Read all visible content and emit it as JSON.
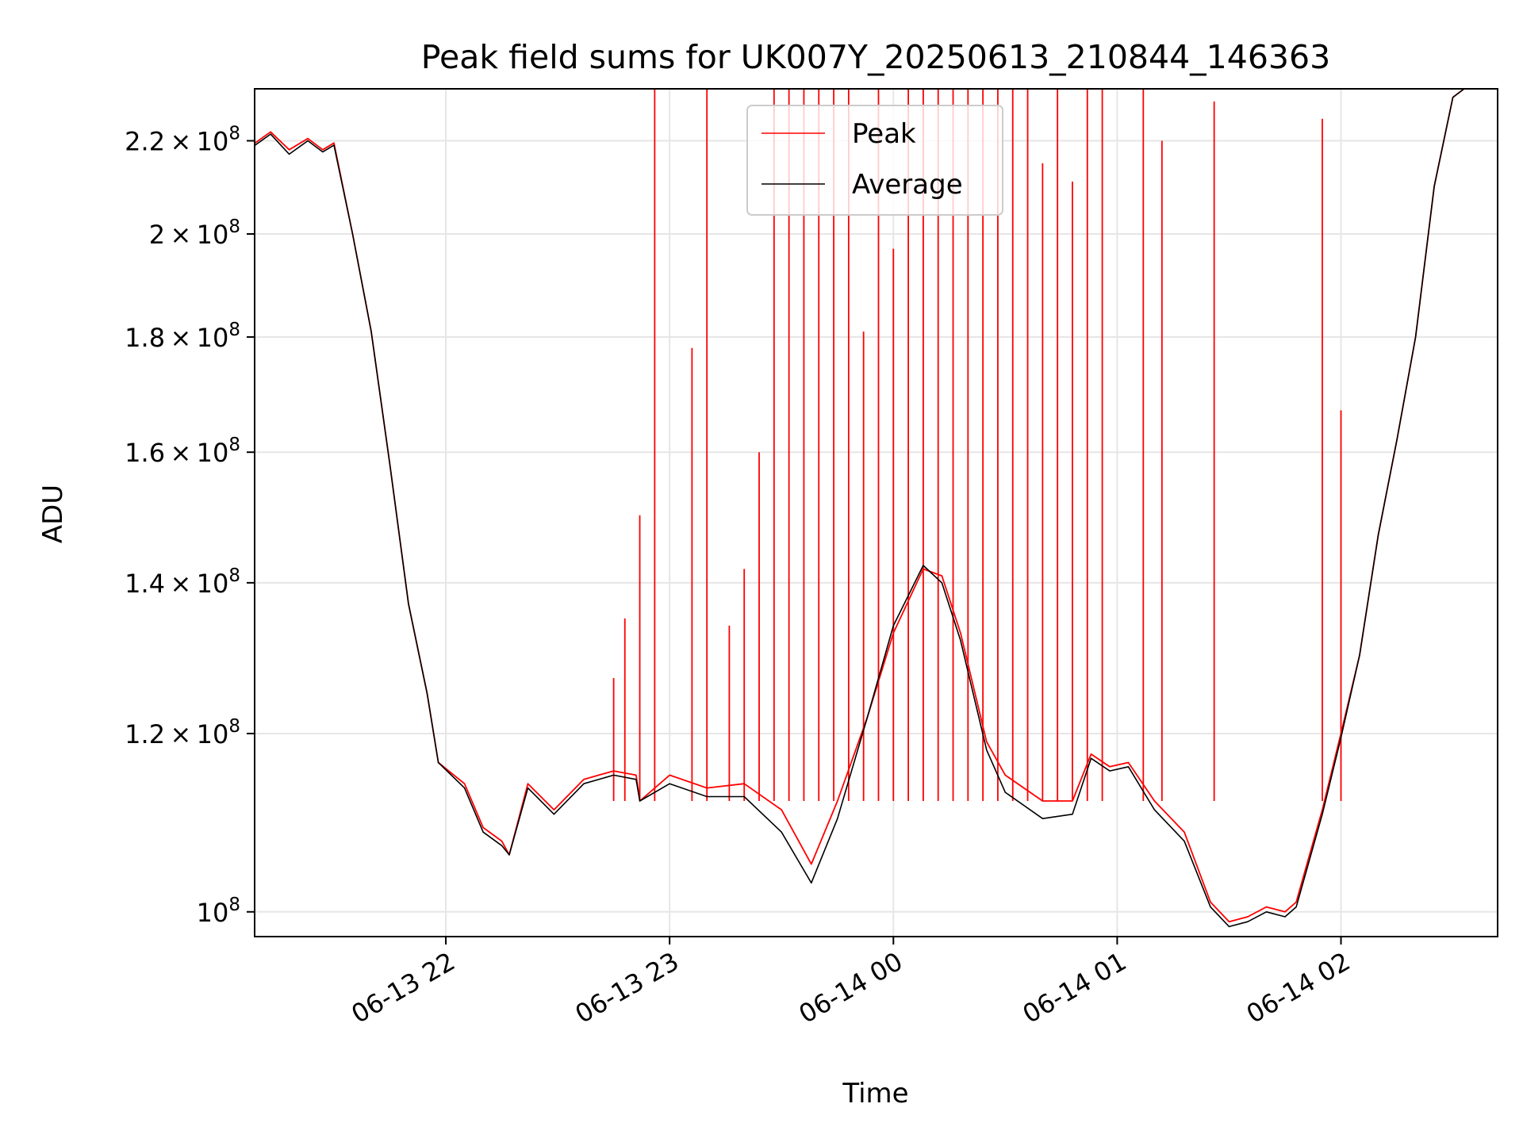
{
  "chart_data": {
    "type": "line",
    "title": "Peak field sums for UK007Y_20250613_210844_146363",
    "xlabel": "Time",
    "ylabel": "ADU",
    "yscale": "log",
    "ylim": [
      97500000,
      232000000
    ],
    "xlim": [
      "2025-06-13 21:08:44",
      "2025-06-14 02:42:00"
    ],
    "grid": true,
    "legend_position": "upper center",
    "x_ticks": [
      {
        "value": "2025-06-13 22:00",
        "label": "06-13 22"
      },
      {
        "value": "2025-06-13 23:00",
        "label": "06-13 23"
      },
      {
        "value": "2025-06-14 00:00",
        "label": "06-14 00"
      },
      {
        "value": "2025-06-14 01:00",
        "label": "06-14 01"
      },
      {
        "value": "2025-06-14 02:00",
        "label": "06-14 02"
      }
    ],
    "y_ticks": [
      {
        "value": 100000000,
        "mantissa": "",
        "exp": "8"
      },
      {
        "value": 120000000,
        "mantissa": "1.2",
        "exp": "8"
      },
      {
        "value": 140000000,
        "mantissa": "1.4",
        "exp": "8"
      },
      {
        "value": 160000000,
        "mantissa": "1.6",
        "exp": "8"
      },
      {
        "value": 180000000,
        "mantissa": "1.8",
        "exp": "8"
      },
      {
        "value": 200000000,
        "mantissa": "2",
        "exp": "8"
      },
      {
        "value": 220000000,
        "mantissa": "2.2",
        "exp": "8"
      }
    ],
    "series": [
      {
        "name": "Peak",
        "color": "#ff0000",
        "points": [
          [
            "2025-06-13 21:08",
            219000000
          ],
          [
            "2025-06-13 21:13",
            222000000
          ],
          [
            "2025-06-13 21:18",
            218000000
          ],
          [
            "2025-06-13 21:23",
            220500000
          ],
          [
            "2025-06-13 21:27",
            218000000
          ],
          [
            "2025-06-13 21:30",
            219500000
          ],
          [
            "2025-06-13 21:35",
            200000000
          ],
          [
            "2025-06-13 21:40",
            181000000
          ],
          [
            "2025-06-13 21:45",
            158000000
          ],
          [
            "2025-06-13 21:50",
            137000000
          ],
          [
            "2025-06-13 21:55",
            125000000
          ],
          [
            "2025-06-13 21:58",
            116500000
          ],
          [
            "2025-06-13 22:05",
            114000000
          ],
          [
            "2025-06-13 22:10",
            109000000
          ],
          [
            "2025-06-13 22:15",
            107500000
          ],
          [
            "2025-06-13 22:17",
            106000000
          ],
          [
            "2025-06-13 22:22",
            114000000
          ],
          [
            "2025-06-13 22:29",
            111000000
          ],
          [
            "2025-06-13 22:37",
            114500000
          ],
          [
            "2025-06-13 22:45",
            115500000
          ],
          [
            "2025-06-13 22:51",
            115000000
          ],
          [
            "2025-06-13 22:52",
            112000000
          ],
          [
            "2025-06-13 23:00",
            115000000
          ],
          [
            "2025-06-13 23:10",
            113500000
          ],
          [
            "2025-06-13 23:20",
            114000000
          ],
          [
            "2025-06-13 23:30",
            111000000
          ],
          [
            "2025-06-13 23:38",
            105000000
          ],
          [
            "2025-06-13 23:45",
            112000000
          ],
          [
            "2025-06-13 23:53",
            122000000
          ],
          [
            "2025-06-14 00:00",
            133000000
          ],
          [
            "2025-06-14 00:08",
            142000000
          ],
          [
            "2025-06-14 00:13",
            141000000
          ],
          [
            "2025-06-14 00:18",
            133000000
          ],
          [
            "2025-06-14 00:25",
            119000000
          ],
          [
            "2025-06-14 00:30",
            115000000
          ],
          [
            "2025-06-14 00:40",
            112000000
          ],
          [
            "2025-06-14 00:48",
            112000000
          ],
          [
            "2025-06-14 00:53",
            117500000
          ],
          [
            "2025-06-14 00:58",
            116000000
          ],
          [
            "2025-06-14 01:03",
            116500000
          ],
          [
            "2025-06-14 01:10",
            112000000
          ],
          [
            "2025-06-14 01:18",
            108500000
          ],
          [
            "2025-06-14 01:25",
            101000000
          ],
          [
            "2025-06-14 01:30",
            99000000
          ],
          [
            "2025-06-14 01:35",
            99500000
          ],
          [
            "2025-06-14 01:40",
            100500000
          ],
          [
            "2025-06-14 01:45",
            100000000
          ],
          [
            "2025-06-14 01:48",
            101000000
          ],
          [
            "2025-06-14 01:55",
            111000000
          ],
          [
            "2025-06-14 02:00",
            120000000
          ],
          [
            "2025-06-14 02:05",
            130000000
          ],
          [
            "2025-06-14 02:10",
            147000000
          ],
          [
            "2025-06-14 02:15",
            162000000
          ],
          [
            "2025-06-14 02:20",
            180000000
          ],
          [
            "2025-06-14 02:25",
            210000000
          ],
          [
            "2025-06-14 02:30",
            230000000
          ],
          [
            "2025-06-14 02:33",
            232000000
          ]
        ]
      },
      {
        "name": "Average",
        "color": "#000000",
        "points": [
          [
            "2025-06-13 21:08",
            218500000
          ],
          [
            "2025-06-13 21:13",
            221500000
          ],
          [
            "2025-06-13 21:18",
            217000000
          ],
          [
            "2025-06-13 21:23",
            220000000
          ],
          [
            "2025-06-13 21:27",
            217500000
          ],
          [
            "2025-06-13 21:30",
            219000000
          ],
          [
            "2025-06-13 21:35",
            200000000
          ],
          [
            "2025-06-13 21:40",
            181000000
          ],
          [
            "2025-06-13 21:45",
            158000000
          ],
          [
            "2025-06-13 21:50",
            137000000
          ],
          [
            "2025-06-13 21:55",
            125000000
          ],
          [
            "2025-06-13 21:58",
            116500000
          ],
          [
            "2025-06-13 22:05",
            113500000
          ],
          [
            "2025-06-13 22:10",
            108500000
          ],
          [
            "2025-06-13 22:15",
            107000000
          ],
          [
            "2025-06-13 22:17",
            106000000
          ],
          [
            "2025-06-13 22:22",
            113500000
          ],
          [
            "2025-06-13 22:29",
            110500000
          ],
          [
            "2025-06-13 22:37",
            114000000
          ],
          [
            "2025-06-13 22:45",
            115000000
          ],
          [
            "2025-06-13 22:51",
            114500000
          ],
          [
            "2025-06-13 22:52",
            112000000
          ],
          [
            "2025-06-13 23:00",
            114000000
          ],
          [
            "2025-06-13 23:10",
            112500000
          ],
          [
            "2025-06-13 23:20",
            112500000
          ],
          [
            "2025-06-13 23:30",
            108500000
          ],
          [
            "2025-06-13 23:38",
            103000000
          ],
          [
            "2025-06-13 23:45",
            110000000
          ],
          [
            "2025-06-13 23:53",
            122000000
          ],
          [
            "2025-06-14 00:00",
            134000000
          ],
          [
            "2025-06-14 00:08",
            142500000
          ],
          [
            "2025-06-14 00:13",
            140000000
          ],
          [
            "2025-06-14 00:18",
            132000000
          ],
          [
            "2025-06-14 00:25",
            118000000
          ],
          [
            "2025-06-14 00:30",
            113000000
          ],
          [
            "2025-06-14 00:40",
            110000000
          ],
          [
            "2025-06-14 00:48",
            110500000
          ],
          [
            "2025-06-14 00:53",
            117000000
          ],
          [
            "2025-06-14 00:58",
            115500000
          ],
          [
            "2025-06-14 01:03",
            116000000
          ],
          [
            "2025-06-14 01:10",
            111000000
          ],
          [
            "2025-06-14 01:18",
            107500000
          ],
          [
            "2025-06-14 01:25",
            100500000
          ],
          [
            "2025-06-14 01:30",
            98500000
          ],
          [
            "2025-06-14 01:35",
            99000000
          ],
          [
            "2025-06-14 01:40",
            100000000
          ],
          [
            "2025-06-14 01:45",
            99500000
          ],
          [
            "2025-06-14 01:48",
            100500000
          ],
          [
            "2025-06-14 01:55",
            110500000
          ],
          [
            "2025-06-14 02:00",
            119500000
          ],
          [
            "2025-06-14 02:05",
            130000000
          ],
          [
            "2025-06-14 02:10",
            147000000
          ],
          [
            "2025-06-14 02:15",
            162000000
          ],
          [
            "2025-06-14 02:20",
            180000000
          ],
          [
            "2025-06-14 02:25",
            210000000
          ],
          [
            "2025-06-14 02:30",
            230000000
          ],
          [
            "2025-06-14 02:33",
            232000000
          ]
        ]
      }
    ],
    "peak_spikes": [
      [
        "2025-06-13 22:45",
        127000000
      ],
      [
        "2025-06-13 22:48",
        135000000
      ],
      [
        "2025-06-13 22:52",
        150000000
      ],
      [
        "2025-06-13 22:56",
        232000000
      ],
      [
        "2025-06-13 23:06",
        178000000
      ],
      [
        "2025-06-13 23:10",
        232000000
      ],
      [
        "2025-06-13 23:16",
        134000000
      ],
      [
        "2025-06-13 23:20",
        142000000
      ],
      [
        "2025-06-13 23:24",
        160000000
      ],
      [
        "2025-06-13 23:28",
        232000000
      ],
      [
        "2025-06-13 23:32",
        232000000
      ],
      [
        "2025-06-13 23:36",
        232000000
      ],
      [
        "2025-06-13 23:40",
        232000000
      ],
      [
        "2025-06-13 23:44",
        232000000
      ],
      [
        "2025-06-13 23:48",
        232000000
      ],
      [
        "2025-06-13 23:52",
        181000000
      ],
      [
        "2025-06-13 23:56",
        232000000
      ],
      [
        "2025-06-14 00:00",
        197000000
      ],
      [
        "2025-06-14 00:04",
        232000000
      ],
      [
        "2025-06-14 00:08",
        232000000
      ],
      [
        "2025-06-14 00:12",
        232000000
      ],
      [
        "2025-06-14 00:16",
        232000000
      ],
      [
        "2025-06-14 00:20",
        232000000
      ],
      [
        "2025-06-14 00:24",
        232000000
      ],
      [
        "2025-06-14 00:28",
        232000000
      ],
      [
        "2025-06-14 00:32",
        232000000
      ],
      [
        "2025-06-14 00:36",
        232000000
      ],
      [
        "2025-06-14 00:40",
        215000000
      ],
      [
        "2025-06-14 00:44",
        232000000
      ],
      [
        "2025-06-14 00:48",
        211000000
      ],
      [
        "2025-06-14 00:52",
        232000000
      ],
      [
        "2025-06-14 00:56",
        232000000
      ],
      [
        "2025-06-14 01:07",
        232000000
      ],
      [
        "2025-06-14 01:12",
        220000000
      ],
      [
        "2025-06-14 01:26",
        229000000
      ],
      [
        "2025-06-14 01:55",
        225000000
      ],
      [
        "2025-06-14 02:00",
        167000000
      ]
    ]
  }
}
